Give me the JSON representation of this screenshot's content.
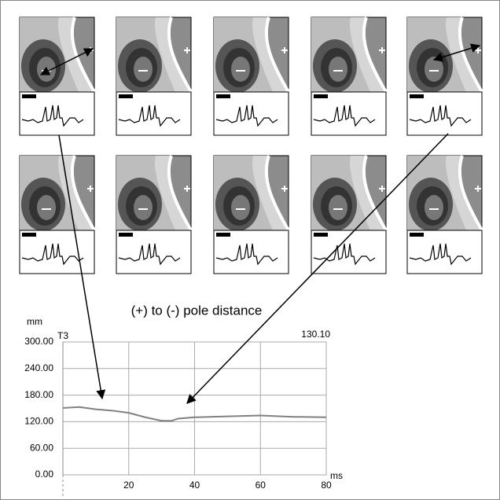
{
  "chart_data": {
    "type": "line",
    "title": "(+) to (-) pole distance",
    "y_label": "mm",
    "x_label": "ms",
    "annotations": [
      "T3",
      "130.10"
    ],
    "x": [
      0,
      5,
      10,
      15,
      20,
      25,
      30,
      33,
      35,
      40,
      50,
      60,
      70,
      80
    ],
    "values": [
      151,
      153,
      148,
      145,
      140,
      130,
      122,
      122,
      127,
      130,
      132,
      134,
      131,
      130.1
    ],
    "color": "#808080",
    "xlim": [
      0,
      80
    ],
    "xticks": [
      20,
      40,
      60,
      80
    ],
    "ylim": [
      0,
      300
    ],
    "yticks": [
      {
        "value": 0,
        "label": "0.00"
      },
      {
        "value": 60,
        "label": "60.00"
      },
      {
        "value": 120,
        "label": "120.00"
      },
      {
        "value": 180,
        "label": "180.00"
      },
      {
        "value": 240,
        "label": "240.00"
      },
      {
        "value": 300,
        "label": "300.00"
      }
    ],
    "grid": true
  }
}
